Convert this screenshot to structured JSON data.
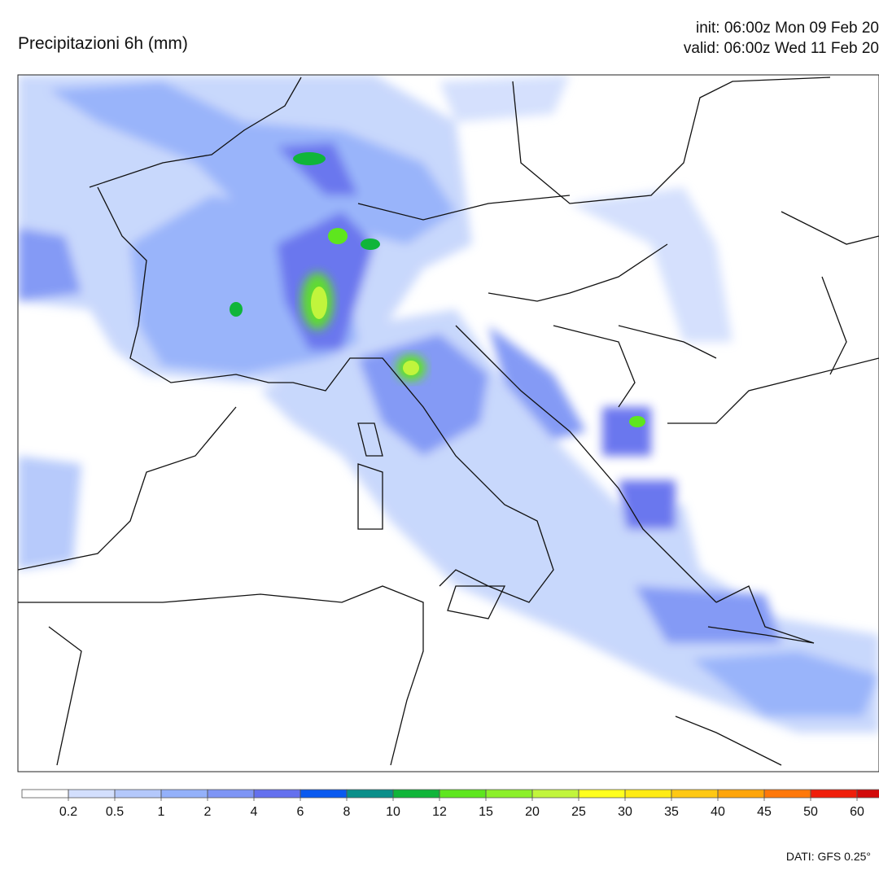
{
  "header": {
    "title": "Precipitazioni 6h (mm)",
    "init": "init: 06:00z Mon 09 Feb 20",
    "valid": "valid: 06:00z Wed 11 Feb 20"
  },
  "legend": {
    "colors": [
      "#ffffff",
      "#d3dffd",
      "#b4c8fb",
      "#94b1fa",
      "#7e95f5",
      "#6470ee",
      "#0a5af0",
      "#0a8f8a",
      "#10b53a",
      "#5ee61e",
      "#8cf02a",
      "#c1f53c",
      "#ffff1e",
      "#ffeb14",
      "#ffc814",
      "#ffa50a",
      "#ff780a",
      "#f01e0a",
      "#d20a0a"
    ],
    "levels": [
      0.2,
      0.5,
      1,
      2,
      4,
      6,
      8,
      10,
      12,
      15,
      20,
      25,
      30,
      35,
      40,
      45,
      50,
      60
    ]
  },
  "footer": "DATI: GFS 0.25°"
}
